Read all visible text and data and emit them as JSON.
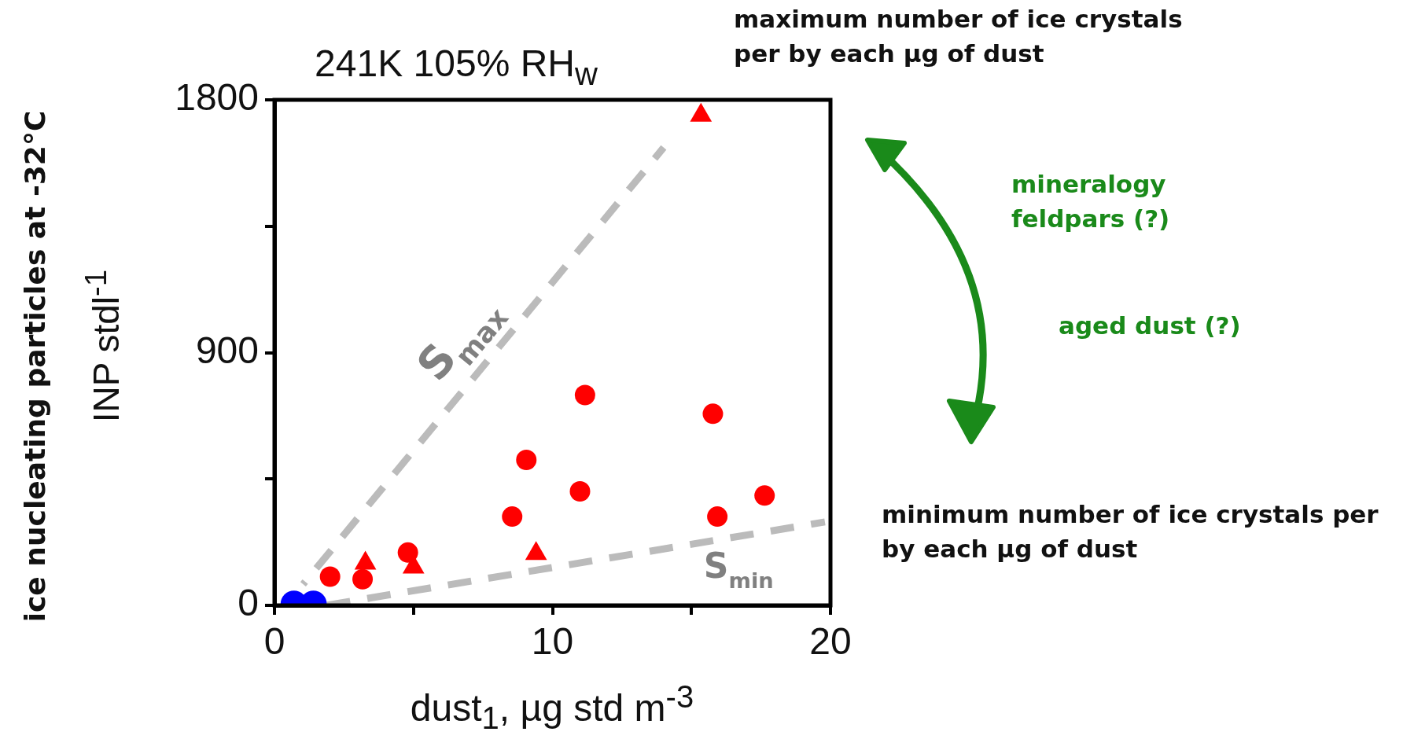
{
  "chart_data": {
    "type": "scatter",
    "title": "241K 105% RH$_{w}$",
    "xlabel": "dust$_{1}$, µg std m$^{-3}$",
    "ylabel": "INP   stdl$^{-1}$",
    "xlim": [
      0,
      20
    ],
    "xticks": [
      0,
      {
        "value": 5,
        "label": null
      },
      10,
      {
        "value": 15,
        "label": null
      },
      20
    ],
    "ylim": [
      0,
      1800
    ],
    "yticks": [
      0,
      {
        "value": 450,
        "label": null
      },
      900,
      {
        "value": 1350,
        "label": null
      },
      1800
    ],
    "grid": false,
    "legend": false,
    "series": [
      {
        "color": "#ff0000",
        "marker": "circle",
        "x": [
          11.17,
          15.77,
          9.06,
          10.99,
          8.55,
          15.93
        ],
        "values": [
          749,
          682,
          518,
          406,
          316,
          316
        ]
      },
      {
        "color": "#ff0000",
        "marker": "circle",
        "x": [
          17.63,
          4.8,
          2.0,
          3.17
        ],
        "values": [
          391,
          188,
          102,
          93
        ]
      },
      {
        "color": "#ff0000",
        "marker": "triangle",
        "x": [
          3.27,
          5.0,
          9.41
        ],
        "values": [
          150,
          136,
          184
        ]
      },
      {
        "color": "#ff0000",
        "marker": "triangle",
        "x": [
          15.34
        ],
        "values": [
          1745
        ]
      },
      {
        "color": "#0000ff",
        "marker": "circle",
        "x": [
          0.7,
          1.4
        ],
        "values": [
          5,
          5
        ]
      },
      {
        "type": "line",
        "name": "S$_{max}$",
        "color": "#bbbbbb",
        "line_style": "dashed",
        "marker": "none",
        "x": [
          1.03,
          14.0
        ],
        "values": [
          75,
          1630
        ]
      },
      {
        "type": "line",
        "name": "S$_{min}$",
        "color": "#bbbbbb",
        "line_style": "dashed",
        "marker": "none",
        "x": [
          1.86,
          19.8
        ],
        "values": [
          0,
          297
        ]
      }
    ],
    "annotations": [
      "ice nucleating particles  at -32°C",
      "maximum number of ice crystals per by each µg of dust",
      "mineralogy feldpars (?)",
      "aged dust (?)",
      "minimum number of ice crystals per by each µg of dust"
    ]
  }
}
